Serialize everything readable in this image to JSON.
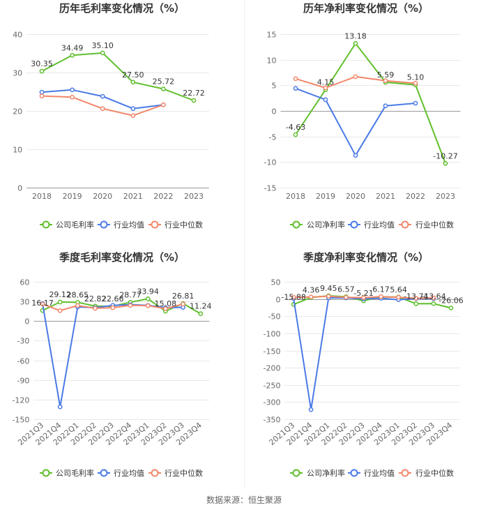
{
  "chart_data": [
    {
      "type": "line",
      "title": "历年毛利率变化情况（%）",
      "categories": [
        "2018",
        "2019",
        "2020",
        "2021",
        "2022",
        "2023"
      ],
      "ylim": [
        0,
        40
      ],
      "yticks": [
        0,
        10,
        20,
        30,
        40
      ],
      "xlabel": "",
      "ylabel": "",
      "grid": true,
      "legend": "bottom",
      "series": [
        {
          "name": "公司毛利率",
          "color": "#5fbf2c",
          "data_labels": true,
          "values": [
            30.35,
            34.49,
            35.1,
            27.5,
            25.72,
            22.72
          ]
        },
        {
          "name": "行业均值",
          "color": "#4a7ae6",
          "data_labels": false,
          "values": [
            24.9,
            25.5,
            23.8,
            20.6,
            21.6,
            null
          ]
        },
        {
          "name": "行业中位数",
          "color": "#f2876a",
          "data_labels": false,
          "values": [
            23.9,
            23.6,
            20.6,
            18.8,
            21.6,
            null
          ]
        }
      ]
    },
    {
      "type": "line",
      "title": "历年净利率变化情况（%）",
      "categories": [
        "2018",
        "2019",
        "2020",
        "2021",
        "2022",
        "2023"
      ],
      "ylim": [
        -15,
        15
      ],
      "yticks": [
        -15,
        -10,
        -5,
        0,
        5,
        10,
        15
      ],
      "xlabel": "",
      "ylabel": "",
      "grid": true,
      "legend": "bottom",
      "series": [
        {
          "name": "公司净利率",
          "color": "#5fbf2c",
          "data_labels": true,
          "values": [
            -4.63,
            4.15,
            13.18,
            5.59,
            5.1,
            -10.27
          ]
        },
        {
          "name": "行业均值",
          "color": "#4a7ae6",
          "data_labels": false,
          "values": [
            4.4,
            2.2,
            -8.7,
            1.0,
            1.5,
            null
          ]
        },
        {
          "name": "行业中位数",
          "color": "#f2876a",
          "data_labels": false,
          "values": [
            6.3,
            4.5,
            6.7,
            5.9,
            5.4,
            null
          ]
        }
      ]
    },
    {
      "type": "line",
      "title": "季度毛利率变化情况（%）",
      "categories": [
        "2021Q3",
        "2021Q4",
        "2022Q1",
        "2022Q2",
        "2022Q3",
        "2022Q4",
        "2023Q1",
        "2023Q2",
        "2023Q3",
        "2023Q4"
      ],
      "ylim": [
        -150,
        60
      ],
      "yticks": [
        -150,
        -120,
        -90,
        -60,
        -30,
        0,
        30,
        60
      ],
      "xlabel": "",
      "ylabel": "",
      "grid": true,
      "legend": "bottom",
      "series": [
        {
          "name": "公司毛利率",
          "color": "#5fbf2c",
          "data_labels": true,
          "values": [
            16.17,
            29.12,
            28.65,
            22.82,
            22.66,
            28.77,
            33.94,
            15.08,
            26.81,
            11.24
          ]
        },
        {
          "name": "行业均值",
          "color": "#4a7ae6",
          "data_labels": false,
          "values": [
            26.8,
            -131.0,
            21.6,
            20.5,
            24.0,
            25.0,
            24.0,
            20.5,
            21.0,
            null
          ]
        },
        {
          "name": "行业中位数",
          "color": "#f2876a",
          "data_labels": false,
          "values": [
            26.0,
            16.0,
            23.8,
            19.5,
            20.5,
            24.0,
            23.5,
            19.0,
            26.0,
            null
          ]
        }
      ]
    },
    {
      "type": "line",
      "title": "季度净利率变化情况（%）",
      "categories": [
        "2021Q3",
        "2021Q4",
        "2022Q1",
        "2022Q2",
        "2022Q3",
        "2022Q4",
        "2023Q1",
        "2023Q2",
        "2023Q3",
        "2023Q4"
      ],
      "ylim": [
        -350,
        50
      ],
      "yticks": [
        -350,
        -300,
        -250,
        -200,
        -150,
        -100,
        -50,
        0,
        50
      ],
      "xlabel": "",
      "ylabel": "",
      "grid": true,
      "legend": "bottom",
      "series": [
        {
          "name": "公司净利率",
          "color": "#5fbf2c",
          "data_labels": true,
          "values": [
            -15.88,
            4.36,
            9.45,
            6.57,
            -5.21,
            6.17,
            5.64,
            -13.74,
            -13.64,
            -26.06
          ]
        },
        {
          "name": "行业均值",
          "color": "#4a7ae6",
          "data_labels": false,
          "values": [
            2.0,
            -322.0,
            3.0,
            3.0,
            0.5,
            2.0,
            -2.0,
            1.0,
            1.0,
            null
          ]
        },
        {
          "name": "行业中位数",
          "color": "#f2876a",
          "data_labels": false,
          "values": [
            5.0,
            6.0,
            8.0,
            5.0,
            4.0,
            7.0,
            5.0,
            2.0,
            3.0,
            null
          ]
        }
      ]
    }
  ],
  "footer": {
    "source": "数据来源：恒生聚源"
  }
}
